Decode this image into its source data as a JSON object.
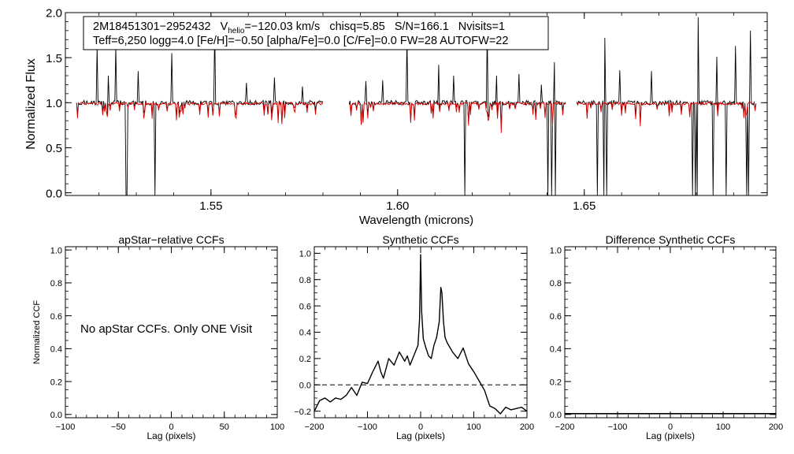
{
  "chart_data": [
    {
      "type": "line",
      "panel": "spectrum",
      "xlabel": "Wavelength (microns)",
      "ylabel": "Normalized Flux",
      "xlim": [
        1.511,
        1.699
      ],
      "ylim": [
        -0.03,
        2.0
      ],
      "xticks": [
        "1.55",
        "1.60",
        "1.65"
      ],
      "yticks": [
        "0.0",
        "0.5",
        "1.0",
        "1.5",
        "2.0"
      ],
      "header": {
        "object": "2M18451301−2952432",
        "vhelio_label": "V",
        "vhelio_sub": "helio",
        "vhelio_value": "=−120.03 km/s",
        "chisq": "chisq=5.85",
        "snr": "S/N=166.1",
        "nvisits": "Nvisits=1",
        "line2": "Teff=6,250 logg=4.0 [Fe/H]=−0.50 [alpha/Fe]=0.0 [C/Fe]=0.0 FW=28 AUTOFW=22"
      },
      "segments": [
        [
          1.514,
          1.58
        ],
        [
          1.587,
          1.645
        ],
        [
          1.648,
          1.696
        ]
      ],
      "series": [
        {
          "role": "observed",
          "color": "#000000"
        },
        {
          "role": "model",
          "color": "#e00000"
        }
      ],
      "emission_spikes": [
        [
          1.5195,
          1.62
        ],
        [
          1.5225,
          1.3
        ],
        [
          1.5245,
          1.62
        ],
        [
          1.5305,
          1.35
        ],
        [
          1.5395,
          1.55
        ],
        [
          1.551,
          1.83
        ],
        [
          1.5595,
          1.22
        ],
        [
          1.567,
          1.28
        ],
        [
          1.5745,
          1.18
        ],
        [
          1.5915,
          1.24
        ],
        [
          1.596,
          1.25
        ],
        [
          1.6025,
          1.7
        ],
        [
          1.611,
          1.42
        ],
        [
          1.615,
          1.3
        ],
        [
          1.624,
          1.82
        ],
        [
          1.6265,
          1.3
        ],
        [
          1.6325,
          1.32
        ],
        [
          1.6385,
          1.2
        ],
        [
          1.642,
          1.45
        ],
        [
          1.647,
          1.57
        ],
        [
          1.6555,
          1.72
        ],
        [
          1.6595,
          1.36
        ],
        [
          1.668,
          1.35
        ],
        [
          1.6805,
          1.95
        ],
        [
          1.6855,
          1.51
        ],
        [
          1.6905,
          1.63
        ],
        [
          1.6945,
          1.8
        ],
        [
          1.6965,
          1.43
        ]
      ],
      "absorption_dropouts": [
        1.5272,
        1.5274,
        1.5349,
        1.5351,
        1.6179,
        1.6181,
        1.6402,
        1.6412,
        1.6422,
        1.6536,
        1.6552,
        1.656,
        1.679,
        1.6798,
        1.6802,
        1.6845,
        1.688,
        1.6935,
        1.694
      ]
    },
    {
      "type": "line",
      "panel": "ccf-apstar",
      "title": "apStar−relative CCFs",
      "xlabel": "Lag (pixels)",
      "ylabel": "Normalized CCF",
      "xlim": [
        -100,
        100
      ],
      "ylim": [
        -0.02,
        1.02
      ],
      "xticks": [
        "−100",
        "−50",
        "0",
        "50",
        "100"
      ],
      "yticks": [
        "0.0",
        "0.2",
        "0.4",
        "0.6",
        "0.8",
        "1.0"
      ],
      "message": "No apStar CCFs.  Only ONE Visit",
      "series": []
    },
    {
      "type": "line",
      "panel": "ccf-synthetic",
      "title": "Synthetic CCFs",
      "xlabel": "Lag (pixels)",
      "xlim": [
        -200,
        200
      ],
      "ylim": [
        -0.25,
        1.05
      ],
      "xticks": [
        "−200",
        "−100",
        "0",
        "100",
        "200"
      ],
      "yticks": [
        "−0.2",
        "0.0",
        "0.2",
        "0.4",
        "0.6",
        "0.8",
        "1.0"
      ],
      "reference_line": 0.0,
      "series": [
        {
          "color": "#000000",
          "x": [
            -200,
            -190,
            -180,
            -170,
            -160,
            -150,
            -140,
            -130,
            -120,
            -110,
            -100,
            -90,
            -80,
            -75,
            -70,
            -60,
            -50,
            -40,
            -30,
            -25,
            -20,
            -15,
            -10,
            -5,
            -2,
            0,
            2,
            5,
            10,
            15,
            20,
            25,
            30,
            35,
            38,
            40,
            43,
            46,
            50,
            60,
            70,
            80,
            90,
            100,
            110,
            120,
            130,
            140,
            150,
            160,
            170,
            180,
            190,
            200
          ],
          "y": [
            -0.2,
            -0.12,
            -0.1,
            -0.13,
            -0.1,
            -0.11,
            -0.08,
            -0.02,
            -0.08,
            0.02,
            0.01,
            0.1,
            0.18,
            0.1,
            0.05,
            0.2,
            0.15,
            0.25,
            0.18,
            0.22,
            0.15,
            0.2,
            0.25,
            0.3,
            0.5,
            0.99,
            0.55,
            0.35,
            0.28,
            0.22,
            0.2,
            0.3,
            0.36,
            0.48,
            0.74,
            0.7,
            0.48,
            0.36,
            0.32,
            0.25,
            0.2,
            0.28,
            0.16,
            0.1,
            0.03,
            -0.04,
            -0.16,
            -0.18,
            -0.22,
            -0.17,
            -0.19,
            -0.18,
            -0.17,
            -0.2
          ]
        }
      ]
    },
    {
      "type": "line",
      "panel": "ccf-difference",
      "title": "Difference Synthetic CCFs",
      "xlabel": "Lag (pixels)",
      "xlim": [
        -200,
        200
      ],
      "ylim": [
        -0.02,
        1.02
      ],
      "xticks": [
        "−200",
        "−100",
        "0",
        "100",
        "200"
      ],
      "yticks": [
        "0.0",
        "0.2",
        "0.4",
        "0.6",
        "0.8",
        "1.0"
      ],
      "series": [
        {
          "color": "#000000",
          "x": [
            -200,
            200
          ],
          "y": [
            0.0,
            0.0
          ]
        }
      ]
    }
  ]
}
